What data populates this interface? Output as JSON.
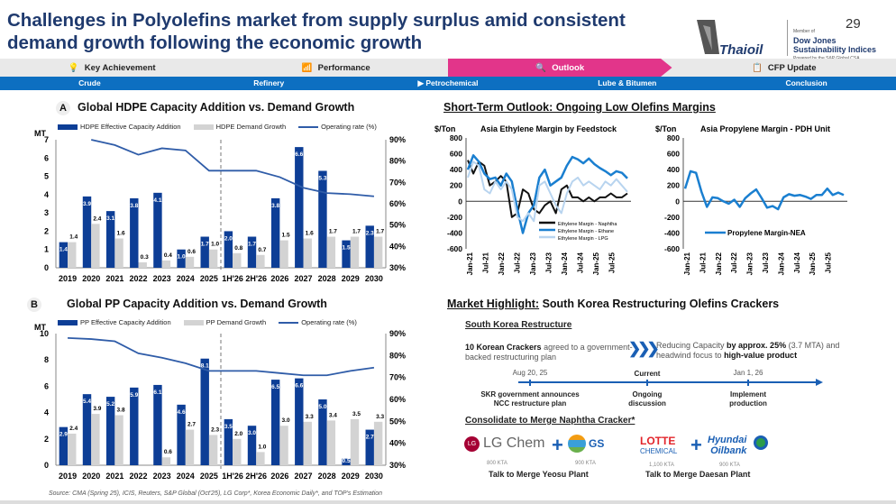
{
  "header": {
    "title": "Challenges in Polyolefins market from supply surplus amid consistent demand growth following the economic growth",
    "page_number": "29",
    "logo_text": "Thaioil",
    "dj_member": "Member of",
    "dj_name": "Dow Jones Sustainability Indices",
    "dj_powered": "Powered by the S&P Global CSA"
  },
  "nav_main": [
    {
      "label": "Key Achievement",
      "icon": "lightbulb-icon"
    },
    {
      "label": "Performance",
      "icon": "bar-chart-icon"
    },
    {
      "label": "Outlook",
      "icon": "magnifier-icon",
      "active": true
    },
    {
      "label": "CFP Update",
      "icon": "document-icon"
    }
  ],
  "nav_sub": [
    "Crude",
    "Refinery",
    "Petrochemical",
    "Lube & Bitumen",
    "Conclusion"
  ],
  "nav_sub_active": "Petrochemical",
  "colors": {
    "navy": "#1f3a6e",
    "bar_blue": "#0d3e96",
    "bar_gray": "#d3d3d3",
    "line_blue": "#2f5ca8",
    "pink": "#e2358a",
    "nav_blue": "#0d6fc1",
    "margin_blue": "#1a7fd0",
    "lpg_blue": "#b8d4ef"
  },
  "section_a": {
    "badge": "A",
    "title": "Global HDPE Capacity Addition vs. Demand Growth"
  },
  "section_b": {
    "badge": "B",
    "title": "Global PP Capacity Addition vs. Demand Growth"
  },
  "short_term": {
    "title": "Short-Term Outlook: Ongoing Low Olefins Margins"
  },
  "chart_data": [
    {
      "type": "bar",
      "id": "hdpe",
      "ylabel": "MT",
      "ylim": [
        0,
        7
      ],
      "yticks": [
        0,
        1,
        2,
        3,
        4,
        5,
        6,
        7
      ],
      "y2lim": [
        30,
        90
      ],
      "y2ticks": [
        "30%",
        "40%",
        "50%",
        "60%",
        "70%",
        "80%",
        "90%"
      ],
      "categories": [
        "2019",
        "2020",
        "2021",
        "2022",
        "2023",
        "2024",
        "2025",
        "1H'26",
        "2H'26",
        "2026",
        "2027",
        "2028",
        "2029",
        "2030"
      ],
      "series": [
        {
          "name": "HDPE Effective Capacity Addition",
          "values": [
            1.4,
            3.9,
            3.1,
            3.8,
            4.1,
            1.0,
            1.7,
            2.0,
            1.7,
            3.8,
            6.6,
            5.3,
            1.5,
            2.3
          ]
        },
        {
          "name": "HDPE Demand Growth",
          "values": [
            1.4,
            2.4,
            1.6,
            0.3,
            0.4,
            0.6,
            1.0,
            0.8,
            0.7,
            1.5,
            1.6,
            1.7,
            1.7,
            1.7
          ]
        },
        {
          "name": "Operating rate (%)",
          "values": [
            null,
            90,
            87.5,
            83,
            86,
            85,
            75.5,
            75.5,
            75.5,
            72.5,
            67.5,
            65,
            64.5,
            63.5
          ]
        }
      ],
      "divider_after": "2025"
    },
    {
      "type": "bar",
      "id": "pp",
      "ylabel": "MT",
      "ylim": [
        0,
        10
      ],
      "yticks": [
        0,
        2,
        4,
        6,
        8,
        10
      ],
      "y2lim": [
        30,
        90
      ],
      "y2ticks": [
        "30%",
        "40%",
        "50%",
        "60%",
        "70%",
        "80%",
        "90%"
      ],
      "categories": [
        "2019",
        "2020",
        "2021",
        "2022",
        "2023",
        "2024",
        "2025",
        "1H'26",
        "2H'26",
        "2026",
        "2027",
        "2028",
        "2029",
        "2030"
      ],
      "series": [
        {
          "name": "PP Effective Capacity Addition",
          "values": [
            2.9,
            5.4,
            5.2,
            5.9,
            6.1,
            4.6,
            8.1,
            3.5,
            3.0,
            6.5,
            6.6,
            5.0,
            0.5,
            2.7
          ]
        },
        {
          "name": "PP Demand Growth",
          "values": [
            2.4,
            3.9,
            3.8,
            0,
            0.6,
            2.7,
            2.3,
            2.0,
            1.0,
            3.0,
            3.3,
            3.4,
            3.5,
            3.3
          ]
        },
        {
          "name": "Operating rate (%)",
          "values": [
            88,
            87.5,
            86.5,
            81,
            79,
            76.5,
            73,
            73,
            73,
            72,
            71,
            71,
            73,
            74.5
          ]
        }
      ],
      "divider_after": "2025"
    },
    {
      "type": "line",
      "id": "ethylene",
      "title": "Asia Ethylene Margin by Feedstock",
      "ylabel": "$/Ton",
      "ylim": [
        -600,
        800
      ],
      "yticks": [
        -600,
        -400,
        -200,
        0,
        200,
        400,
        600,
        800
      ],
      "xticks": [
        "Jan-21",
        "Jul-21",
        "Jan-22",
        "Jul-22",
        "Jan-23",
        "Jul-23",
        "Jan-24",
        "Jul-24",
        "Jan-25",
        "Jul-25"
      ],
      "x_months": 60,
      "series": [
        {
          "name": "Ethylene Margin - Naphtha",
          "values": [
            520,
            350,
            500,
            450,
            200,
            250,
            320,
            250,
            -200,
            -150,
            150,
            100,
            -100,
            -150,
            -50,
            0,
            -150,
            150,
            200,
            50,
            50,
            0,
            50,
            0,
            50,
            50,
            100,
            50,
            50,
            100
          ]
        },
        {
          "name": "Ethylene Margin - Ethane",
          "values": [
            400,
            580,
            500,
            350,
            280,
            300,
            200,
            350,
            250,
            -100,
            -400,
            -150,
            -50,
            300,
            400,
            200,
            250,
            300,
            450,
            560,
            530,
            480,
            540,
            470,
            420,
            380,
            330,
            380,
            360,
            290
          ]
        },
        {
          "name": "Ethylene Margin - LPG",
          "values": [
            300,
            500,
            450,
            150,
            100,
            250,
            150,
            250,
            150,
            -200,
            -250,
            -150,
            -250,
            200,
            250,
            100,
            -50,
            -150,
            100,
            250,
            300,
            200,
            250,
            200,
            150,
            250,
            200,
            280,
            200,
            120
          ]
        }
      ]
    },
    {
      "type": "line",
      "id": "propylene",
      "title": "Asia Propylene Margin - PDH Unit",
      "ylabel": "$/Ton",
      "ylim": [
        -600,
        800
      ],
      "yticks": [
        -600,
        -400,
        -200,
        0,
        200,
        400,
        600,
        800
      ],
      "xticks": [
        "Jan-21",
        "Jul-21",
        "Jan-22",
        "Jul-22",
        "Jan-23",
        "Jul-23",
        "Jan-24",
        "Jul-24",
        "Jan-25",
        "Jul-25"
      ],
      "x_months": 60,
      "series": [
        {
          "name": "Propylene Margin-NEA",
          "values": [
            160,
            380,
            360,
            120,
            -70,
            50,
            40,
            0,
            -30,
            20,
            -70,
            40,
            100,
            150,
            40,
            -80,
            -60,
            -100,
            50,
            90,
            70,
            80,
            60,
            30,
            80,
            80,
            160,
            80,
            110,
            80
          ]
        }
      ]
    }
  ],
  "market": {
    "title_prefix": "Market Highlight:",
    "title_rest": " South Korea Restructuring Olefins Crackers",
    "sub1": "South Korea Restructure",
    "left_bold": "10 Korean Crackers",
    "left_rest": " agreed to a government-backed restructuring plan",
    "right_1": "Reducing Capacity ",
    "right_bold1": "by approx. 25%",
    "right_2": " (3.7 MTA) and headwind focus to ",
    "right_bold2": "high-value product",
    "timeline": [
      {
        "top": "Aug 20, 25",
        "bottom": "SKR government announces NCC restructure plan"
      },
      {
        "top": "Current",
        "bottom": "Ongoing discussion"
      },
      {
        "top": "Jan 1, 26",
        "bottom": "Implement production"
      }
    ],
    "sub2": "Consolidate to Merge Naphtha Cracker*",
    "merges": [
      {
        "a": "LG Chem",
        "a_cap": "800 KTA",
        "b": "GS",
        "b_cap": "900 KTA",
        "caption": "Talk to Merge Yeosu Plant"
      },
      {
        "a": "LOTTE",
        "a2": "CHEMICAL",
        "a_cap": "1,100 KTA",
        "b": "Hyundai",
        "b2": "Oilbank",
        "b_cap": "900 KTA",
        "caption": "Talk to Merge Daesan Plant"
      }
    ]
  },
  "footer": {
    "source": "Source: CMA (Spring 25), ICIS, Reuters, S&P Global (Oct'25), LG Corp*, Korea Economic Daily*, and TOP's Estimation"
  }
}
